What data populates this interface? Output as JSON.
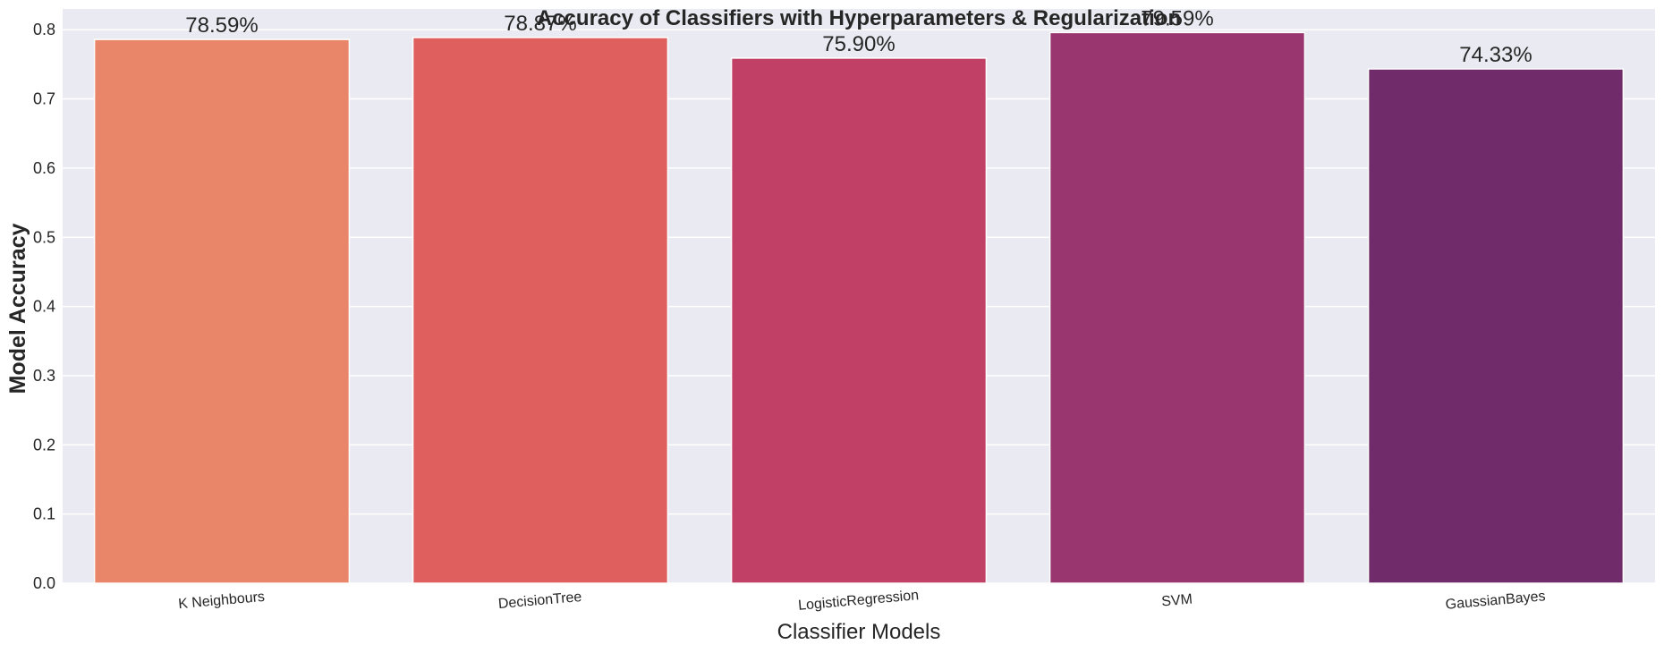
{
  "chart_data": {
    "type": "bar",
    "title": "Accuracy of Classifiers with Hyperparameters & Regularization",
    "xlabel": "Classifier Models",
    "ylabel": "Model Accuracy",
    "categories": [
      "K Neighbours",
      "DecisionTree",
      "LogisticRegression",
      "SVM",
      "GaussianBayes"
    ],
    "values": [
      0.7859,
      0.7887,
      0.759,
      0.7959,
      0.7433
    ],
    "data_labels": [
      "78.59%",
      "78.87%",
      "75.90%",
      "79.59%",
      "74.33%"
    ],
    "colors": [
      "#e9866a",
      "#df5e5e",
      "#c04066",
      "#99356f",
      "#702b6a"
    ],
    "ylim": [
      0,
      0.83
    ],
    "yticks": [
      "0.0",
      "0.1",
      "0.2",
      "0.3",
      "0.4",
      "0.5",
      "0.6",
      "0.7",
      "0.8"
    ],
    "grid": true,
    "background": "#eaeaf2"
  }
}
